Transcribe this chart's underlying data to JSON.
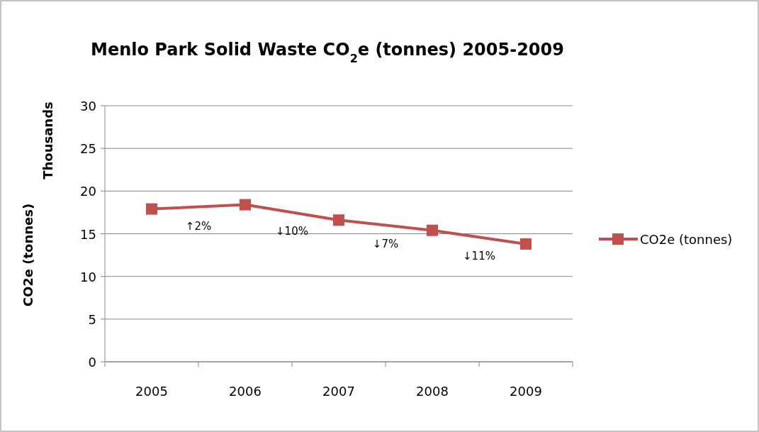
{
  "chart_data": {
    "type": "line",
    "title": "Menlo Park Solid Waste CO$_{2}$e (tonnes) 2005-2009",
    "ylabel": "CO2e (tonnes)",
    "categories": [
      "2005",
      "2006",
      "2007",
      "2008",
      "2009"
    ],
    "series": [
      {
        "name": "CO2e (tonnes)",
        "color": "#c0504d",
        "values": [
          17.9,
          18.4,
          16.6,
          15.4,
          13.8
        ]
      }
    ],
    "ylim": [
      0,
      30
    ],
    "yticks": [
      0,
      5,
      10,
      15,
      20,
      25,
      30
    ],
    "grid": "y",
    "legend": "right",
    "marker": "square",
    "line_style": "solid",
    "annotations": [
      "Thousands",
      "↑2%",
      "↓10%",
      "↓7%",
      "↓11%"
    ]
  }
}
